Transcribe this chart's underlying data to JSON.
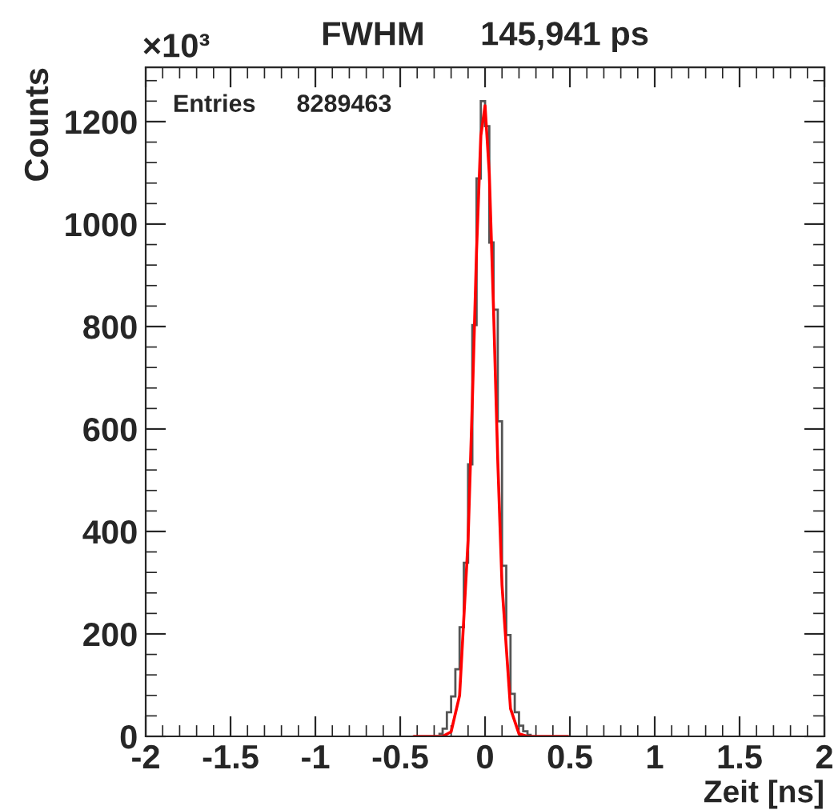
{
  "chart_data": {
    "type": "histogram",
    "title": "FWHM      145,941 ps",
    "xlabel": "Zeit [ns]",
    "ylabel": "Counts",
    "annotations": [
      "×10³",
      "Entries      8289463"
    ],
    "bins": [
      -0.275,
      -0.25,
      -0.225,
      -0.2,
      -0.175,
      -0.15,
      -0.125,
      -0.1,
      -0.075,
      -0.05,
      -0.025,
      0,
      0.025,
      0.05,
      0.075,
      0.1,
      0.125,
      0.15,
      0.175,
      0.2,
      0.225,
      0.25,
      0.275
    ],
    "values": [
      5,
      15,
      47,
      78,
      131,
      213,
      339,
      531,
      803,
      1089,
      1240,
      1191,
      964,
      833,
      615,
      333,
      198,
      83,
      47,
      21,
      10,
      3
    ],
    "color": "#555555",
    "series": [
      {
        "type": "line",
        "color": "#ff0000",
        "x": [
          -0.42,
          -0.3,
          -0.25,
          -0.2,
          -0.15,
          -0.1,
          -0.075,
          -0.05,
          -0.025,
          0,
          0.025,
          0.05,
          0.075,
          0.1,
          0.15,
          0.2,
          0.25,
          0.3,
          0.49
        ],
        "values": [
          0,
          0,
          0,
          9,
          80,
          383,
          653,
          949,
          1172,
          1231,
          1099,
          834,
          537,
          295,
          54,
          5,
          0,
          0,
          0
        ]
      }
    ],
    "xlim": [
      -2,
      2
    ],
    "ylim": [
      0,
      1306
    ],
    "xticks": [
      -2,
      -1.5,
      -1,
      -0.5,
      0,
      0.5,
      1,
      1.5,
      2
    ],
    "yticks": [
      0,
      200,
      400,
      600,
      800,
      1000,
      1200
    ]
  }
}
